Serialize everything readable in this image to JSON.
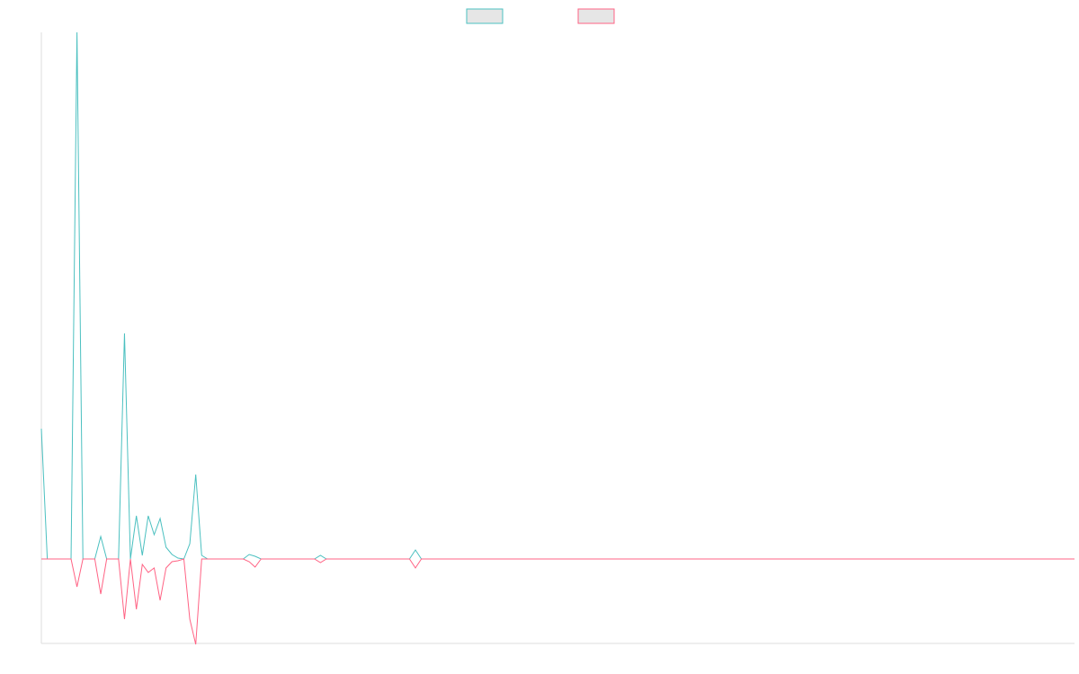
{
  "chart_data": {
    "type": "line",
    "categories": [
      null,
      null,
      null,
      null,
      null,
      null,
      null,
      null,
      null,
      null,
      null,
      null,
      null,
      null,
      null,
      null,
      null,
      null,
      null,
      null,
      null,
      null,
      null,
      null,
      null,
      null,
      null,
      null,
      null,
      null,
      null,
      null,
      null,
      null,
      null,
      null,
      null,
      null,
      null,
      null,
      null,
      null,
      null,
      null,
      null,
      null,
      null,
      null,
      null,
      null,
      null,
      null,
      null,
      null,
      null,
      null,
      null,
      null,
      null,
      null,
      null,
      null,
      null,
      null,
      null,
      null,
      null,
      null,
      null,
      null,
      null,
      null,
      null,
      null,
      null,
      null,
      null,
      null,
      null,
      null,
      null,
      null,
      null,
      null,
      null,
      null,
      null,
      null,
      null,
      null,
      null,
      null,
      null,
      null,
      null,
      null,
      null,
      null,
      null,
      null,
      null,
      null,
      null,
      null,
      null,
      null,
      null,
      null,
      null,
      null,
      null,
      null,
      null,
      null,
      null,
      null,
      null,
      null,
      null,
      null,
      null,
      null,
      null,
      null,
      null,
      null,
      null,
      null,
      null,
      null,
      null,
      null,
      null,
      null,
      null,
      null,
      null,
      null,
      null,
      null,
      null,
      null,
      null,
      null,
      null,
      null,
      null,
      null,
      null,
      null,
      null,
      null,
      null,
      null,
      null,
      null,
      null,
      null,
      null,
      null,
      null,
      null,
      null,
      null,
      null,
      null,
      null,
      null,
      null,
      null,
      null,
      null,
      null,
      null,
      null
    ],
    "series": [
      {
        "color": "#4bc0c0",
        "values": [
          14.5,
          0,
          0,
          0,
          0,
          0,
          58.6,
          0,
          0,
          0,
          2.5,
          0,
          0,
          0,
          25.1,
          0,
          4.8,
          0.4,
          4.8,
          2.7,
          4.5,
          1.3,
          0.5,
          0.1,
          0,
          1.7,
          9.4,
          0.4,
          0,
          0,
          0,
          0,
          0,
          0,
          0,
          0.5,
          0.3,
          0,
          0,
          0,
          0,
          0,
          0,
          0,
          0,
          0,
          0,
          0.4,
          0,
          0,
          0,
          0,
          0,
          0,
          0,
          0,
          0,
          0,
          0,
          0,
          0,
          0,
          0,
          1.0,
          0,
          0,
          0,
          0,
          0,
          0,
          0,
          0,
          0,
          0,
          0,
          0,
          0,
          0,
          0,
          0,
          0,
          0,
          0,
          0,
          0,
          0,
          0,
          0,
          0,
          0,
          0,
          0,
          0,
          0,
          0,
          0,
          0,
          0,
          0,
          0,
          0,
          0,
          0,
          0,
          0,
          0,
          0,
          0,
          0,
          0,
          0,
          0,
          0,
          0,
          0,
          0,
          0,
          0,
          0,
          0,
          0,
          0,
          0,
          0,
          0,
          0,
          0,
          0,
          0,
          0,
          0,
          0,
          0,
          0,
          0,
          0,
          0,
          0,
          0,
          0,
          0,
          0,
          0,
          0,
          0,
          0,
          0,
          0,
          0,
          0,
          0,
          0,
          0,
          0,
          0,
          0,
          0,
          0,
          0,
          0,
          0,
          0,
          0,
          0,
          0,
          0,
          0,
          0,
          0,
          0,
          0,
          0,
          0,
          0,
          0
        ]
      },
      {
        "color": "#ff6384",
        "values": [
          0,
          0,
          0,
          0,
          0,
          0,
          -3.1,
          0,
          0,
          0,
          -3.9,
          0,
          0,
          0,
          -6.7,
          0,
          -5.6,
          -0.6,
          -1.5,
          -1.0,
          -4.6,
          -1.0,
          -0.3,
          -0.2,
          0,
          -6.7,
          -9.5,
          0,
          0,
          0,
          0,
          0,
          0,
          0,
          0,
          -0.3,
          -0.9,
          0,
          0,
          0,
          0,
          0,
          0,
          0,
          0,
          0,
          0,
          -0.4,
          0,
          0,
          0,
          0,
          0,
          0,
          0,
          0,
          0,
          0,
          0,
          0,
          0,
          0,
          0,
          -1.0,
          0,
          0,
          0,
          0,
          0,
          0,
          0,
          0,
          0,
          0,
          0,
          0,
          0,
          0,
          0,
          0,
          0,
          0,
          0,
          0,
          0,
          0,
          0,
          0,
          0,
          0,
          0,
          0,
          0,
          0,
          0,
          0,
          0,
          0,
          0,
          0,
          0,
          0,
          0,
          0,
          0,
          0,
          0,
          0,
          0,
          0,
          0,
          0,
          0,
          0,
          0,
          0,
          0,
          0,
          0,
          0,
          0,
          0,
          0,
          0,
          0,
          0,
          0,
          0,
          0,
          0,
          0,
          0,
          0,
          0,
          0,
          0,
          0,
          0,
          0,
          0,
          0,
          0,
          0,
          0,
          0,
          0,
          0,
          0,
          0,
          0,
          0,
          0,
          0,
          0,
          0,
          0,
          0,
          0,
          0,
          0,
          0,
          0,
          0,
          0,
          0,
          0,
          0,
          0,
          0,
          0,
          0,
          0,
          0,
          0,
          0
        ]
      }
    ],
    "ylim": [
      -9.4,
      58.6
    ],
    "legend": "top"
  }
}
